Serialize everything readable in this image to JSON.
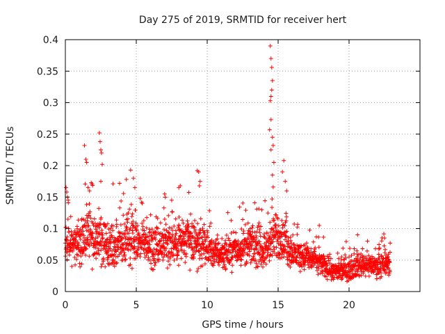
{
  "chart_data": {
    "type": "scatter",
    "title": "Day 275 of 2019, SRMTID for receiver hert",
    "xlabel": "GPS time / hours",
    "ylabel": "SRMTID / TECUs",
    "xlim": [
      0,
      25
    ],
    "ylim": [
      0,
      0.4
    ],
    "xticks": [
      0,
      5,
      10,
      15,
      20
    ],
    "yticks": [
      0,
      0.05,
      0.1,
      0.15,
      0.2,
      0.25,
      0.3,
      0.35,
      0.4
    ],
    "xtick_labels": [
      "0",
      "5",
      "10",
      "15",
      "20"
    ],
    "ytick_labels": [
      "0",
      "0.05",
      "0.1",
      "0.15",
      "0.2",
      "0.25",
      "0.3",
      "0.35",
      "0.4"
    ],
    "grid": true,
    "marker": "+",
    "color": "#ff0000",
    "series": [
      {
        "name": "SRMTID",
        "x_range": [
          0,
          22.9
        ],
        "envelope": [
          {
            "x": 0.0,
            "base": 0.085,
            "spread": 0.05
          },
          {
            "x": 0.5,
            "base": 0.075,
            "spread": 0.04
          },
          {
            "x": 1.0,
            "base": 0.08,
            "spread": 0.05
          },
          {
            "x": 1.5,
            "base": 0.1,
            "spread": 0.06
          },
          {
            "x": 2.0,
            "base": 0.08,
            "spread": 0.05
          },
          {
            "x": 2.5,
            "base": 0.085,
            "spread": 0.05
          },
          {
            "x": 3.0,
            "base": 0.07,
            "spread": 0.045
          },
          {
            "x": 4.0,
            "base": 0.08,
            "spread": 0.05
          },
          {
            "x": 5.0,
            "base": 0.085,
            "spread": 0.05
          },
          {
            "x": 6.0,
            "base": 0.075,
            "spread": 0.045
          },
          {
            "x": 7.0,
            "base": 0.075,
            "spread": 0.045
          },
          {
            "x": 8.0,
            "base": 0.08,
            "spread": 0.05
          },
          {
            "x": 9.0,
            "base": 0.08,
            "spread": 0.05
          },
          {
            "x": 10.0,
            "base": 0.065,
            "spread": 0.035
          },
          {
            "x": 11.0,
            "base": 0.06,
            "spread": 0.03
          },
          {
            "x": 12.0,
            "base": 0.065,
            "spread": 0.035
          },
          {
            "x": 13.0,
            "base": 0.075,
            "spread": 0.04
          },
          {
            "x": 14.0,
            "base": 0.065,
            "spread": 0.035
          },
          {
            "x": 15.0,
            "base": 0.09,
            "spread": 0.05
          },
          {
            "x": 16.0,
            "base": 0.06,
            "spread": 0.03
          },
          {
            "x": 17.0,
            "base": 0.055,
            "spread": 0.03
          },
          {
            "x": 18.0,
            "base": 0.045,
            "spread": 0.025
          },
          {
            "x": 19.0,
            "base": 0.03,
            "spread": 0.018
          },
          {
            "x": 20.0,
            "base": 0.035,
            "spread": 0.022
          },
          {
            "x": 21.0,
            "base": 0.045,
            "spread": 0.025
          },
          {
            "x": 22.0,
            "base": 0.04,
            "spread": 0.022
          },
          {
            "x": 22.9,
            "base": 0.045,
            "spread": 0.025
          }
        ],
        "peaks": [
          [
            0.05,
            0.165
          ],
          [
            0.1,
            0.158
          ],
          [
            0.15,
            0.15
          ],
          [
            0.2,
            0.145
          ],
          [
            1.35,
            0.232
          ],
          [
            1.45,
            0.21
          ],
          [
            1.5,
            0.205
          ],
          [
            1.6,
            0.165
          ],
          [
            1.7,
            0.16
          ],
          [
            2.4,
            0.252
          ],
          [
            2.45,
            0.238
          ],
          [
            2.5,
            0.225
          ],
          [
            2.55,
            0.22
          ],
          [
            2.6,
            0.202
          ],
          [
            2.5,
            0.175
          ],
          [
            4.3,
            0.178
          ],
          [
            4.6,
            0.193
          ],
          [
            4.8,
            0.18
          ],
          [
            4.9,
            0.165
          ],
          [
            7.0,
            0.155
          ],
          [
            8.0,
            0.165
          ],
          [
            8.1,
            0.168
          ],
          [
            9.3,
            0.192
          ],
          [
            9.4,
            0.19
          ],
          [
            9.5,
            0.175
          ],
          [
            9.45,
            0.168
          ],
          [
            14.45,
            0.39
          ],
          [
            14.5,
            0.37
          ],
          [
            14.55,
            0.356
          ],
          [
            14.6,
            0.335
          ],
          [
            14.55,
            0.32
          ],
          [
            14.5,
            0.31
          ],
          [
            14.45,
            0.303
          ],
          [
            14.5,
            0.273
          ],
          [
            14.4,
            0.257
          ],
          [
            14.6,
            0.245
          ],
          [
            14.65,
            0.232
          ],
          [
            14.5,
            0.225
          ],
          [
            14.7,
            0.205
          ],
          [
            14.6,
            0.185
          ],
          [
            14.65,
            0.166
          ],
          [
            15.4,
            0.208
          ],
          [
            15.3,
            0.19
          ],
          [
            15.5,
            0.175
          ],
          [
            15.6,
            0.16
          ],
          [
            17.9,
            0.105
          ],
          [
            20.6,
            0.09
          ],
          [
            22.5,
            0.085
          ]
        ],
        "n_points": 2100
      }
    ]
  }
}
